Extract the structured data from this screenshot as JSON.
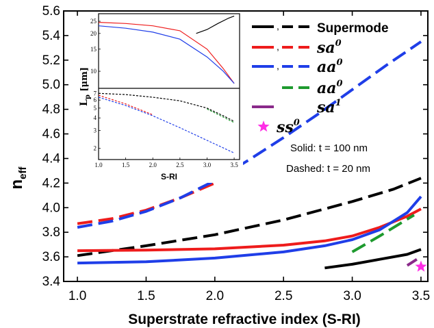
{
  "chart_data": {
    "type": "line",
    "xlabel": "Superstrate refractive index (S-RI)",
    "ylabel_main": "n",
    "ylabel_sub": "eff",
    "xlim": [
      0.9,
      3.55
    ],
    "ylim": [
      3.4,
      5.6
    ],
    "xticks": [
      "1.0",
      "1.5",
      "2.0",
      "2.5",
      "3.0",
      "3.5"
    ],
    "yticks": [
      "3.4",
      "3.6",
      "3.8",
      "4.0",
      "4.2",
      "4.4",
      "4.6",
      "4.8",
      "5.0",
      "5.2",
      "5.4",
      "5.6"
    ],
    "grid": false,
    "legend_position": "top-right",
    "legend": [
      {
        "label": "Supermode",
        "sup": "",
        "italic": false,
        "color": "#000000",
        "solid": true,
        "dashed": true
      },
      {
        "label": "sa",
        "sup": "0",
        "italic": true,
        "color": "#ee1c1c",
        "solid": true,
        "dashed": true
      },
      {
        "label": "aa",
        "sup": "0",
        "italic": true,
        "color": "#1f3ee8",
        "solid": true,
        "dashed": true
      },
      {
        "label": "aa",
        "sup": "0",
        "italic": true,
        "color": "#1e9a2e",
        "solid": false,
        "dashed": true
      },
      {
        "label": "sa",
        "sup": "1",
        "italic": true,
        "color": "#8a2a8a",
        "solid": true,
        "dashed": false
      },
      {
        "label": "ss",
        "sup": "0",
        "italic": true,
        "color": "#ff2ee6",
        "marker": "star"
      }
    ],
    "legend_separator": ",",
    "annotations": [
      "Solid: t = 100 nm",
      "Dashed: t = 20 nm"
    ],
    "series": [
      {
        "name": "Supermode solid",
        "color": "#000000",
        "dash": false,
        "x": [
          2.8,
          3.0,
          3.2,
          3.4,
          3.5
        ],
        "y": [
          3.51,
          3.54,
          3.58,
          3.62,
          3.66
        ]
      },
      {
        "name": "Supermode dashed",
        "color": "#000000",
        "dash": true,
        "x": [
          1.0,
          1.5,
          2.0,
          2.5,
          3.0,
          3.3,
          3.5
        ],
        "y": [
          3.61,
          3.69,
          3.78,
          3.9,
          4.05,
          4.15,
          4.24
        ]
      },
      {
        "name": "sa0 solid",
        "color": "#ee1c1c",
        "dash": false,
        "x": [
          1.0,
          1.5,
          2.0,
          2.5,
          2.8,
          3.0,
          3.2,
          3.4,
          3.5
        ],
        "y": [
          3.65,
          3.655,
          3.665,
          3.695,
          3.73,
          3.77,
          3.84,
          3.93,
          3.99
        ]
      },
      {
        "name": "sa0 dashed",
        "color": "#ee1c1c",
        "dash": true,
        "x": [
          1.0,
          1.25,
          1.5,
          1.75,
          2.0,
          2.1
        ],
        "y": [
          3.87,
          3.91,
          3.98,
          4.08,
          4.2,
          4.26
        ]
      },
      {
        "name": "aa0 solid",
        "color": "#1f3ee8",
        "dash": false,
        "x": [
          1.0,
          1.5,
          2.0,
          2.5,
          2.8,
          3.0,
          3.2,
          3.4,
          3.5
        ],
        "y": [
          3.55,
          3.56,
          3.59,
          3.64,
          3.69,
          3.74,
          3.82,
          3.96,
          4.09
        ]
      },
      {
        "name": "aa0 dashed",
        "color": "#1f3ee8",
        "dash": true,
        "x": [
          1.0,
          1.25,
          1.5,
          1.75,
          2.0,
          2.25,
          2.5,
          2.75,
          3.0,
          3.25,
          3.5
        ],
        "y": [
          3.84,
          3.89,
          3.97,
          4.08,
          4.22,
          4.39,
          4.57,
          4.76,
          4.96,
          5.16,
          5.35
        ]
      },
      {
        "name": "aa0 dashed (green)",
        "color": "#1e9a2e",
        "dash": true,
        "x": [
          3.0,
          3.2,
          3.45
        ],
        "y": [
          3.64,
          3.77,
          3.94
        ]
      },
      {
        "name": "sa1 solid",
        "color": "#8a2a8a",
        "dash": false,
        "x": [
          3.4,
          3.47
        ],
        "y": [
          3.53,
          3.58
        ]
      },
      {
        "name": "ss0",
        "color": "#ff2ee6",
        "marker": "star",
        "x": [
          3.5
        ],
        "y": [
          3.52
        ]
      }
    ],
    "inset": {
      "xlabel": "S-RI",
      "ylabel_main": "L",
      "ylabel_sub": "p",
      "ylabel_unit": " [μm]",
      "xlim": [
        1.0,
        3.6
      ],
      "xticks": [
        "1.0",
        "1.5",
        "2.0",
        "2.5",
        "3.0",
        "3.5"
      ],
      "top_yticks": [
        "25",
        "20",
        "15",
        "10"
      ],
      "bottom_yticks": [
        "7",
        "6",
        "5",
        "4",
        "3",
        "2"
      ],
      "top_series": [
        {
          "color": "#ee1c1c",
          "x": [
            1.0,
            1.5,
            2.0,
            2.5,
            3.0,
            3.3,
            3.5
          ],
          "y": [
            24.5,
            24.0,
            23.0,
            21.0,
            15.0,
            10.5,
            8.0
          ]
        },
        {
          "color": "#1f3ee8",
          "x": [
            1.0,
            1.5,
            2.0,
            2.5,
            3.0,
            3.3,
            3.5
          ],
          "y": [
            23.0,
            22.0,
            20.5,
            18.0,
            13.0,
            10.0,
            8.0
          ]
        },
        {
          "color": "#000000",
          "x": [
            2.8,
            3.0,
            3.2,
            3.4,
            3.5
          ],
          "y": [
            20.0,
            21.5,
            24.0,
            26.5,
            27.5
          ]
        }
      ],
      "bottom_series": [
        {
          "color": "#000000",
          "x": [
            1.0,
            1.5,
            2.0,
            2.5,
            3.0,
            3.3,
            3.5
          ],
          "y": [
            7.0,
            6.8,
            6.4,
            5.9,
            5.0,
            4.2,
            3.7
          ]
        },
        {
          "color": "#ee1c1c",
          "x": [
            1.0,
            1.5,
            2.0
          ],
          "y": [
            6.7,
            5.5,
            4.3
          ]
        },
        {
          "color": "#1f3ee8",
          "x": [
            1.0,
            1.5,
            2.0,
            2.5,
            3.0,
            3.5
          ],
          "y": [
            6.4,
            5.3,
            4.2,
            3.2,
            2.4,
            1.8
          ]
        },
        {
          "color": "#1e9a2e",
          "x": [
            3.0,
            3.5
          ],
          "y": [
            4.9,
            3.6
          ]
        }
      ]
    }
  }
}
